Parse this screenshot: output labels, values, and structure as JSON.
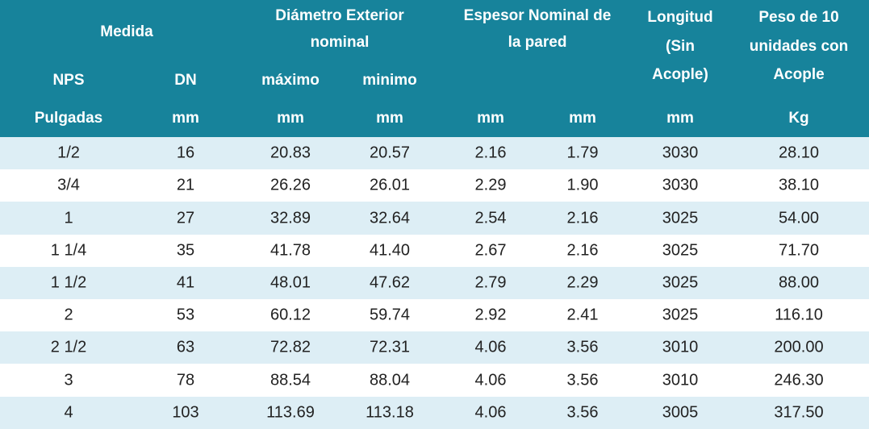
{
  "header": {
    "groups": [
      {
        "lines": [
          "Medida"
        ]
      },
      {
        "lines": [
          "Diámetro Exterior",
          "nominal"
        ]
      },
      {
        "lines": [
          "Espesor Nominal de",
          "la pared"
        ]
      },
      {
        "lines": [
          "Longitud",
          "(Sin",
          "Acople)"
        ]
      },
      {
        "lines": [
          "Peso de 10",
          "unidades con",
          "Acople"
        ]
      }
    ],
    "sub": [
      "NPS",
      "DN",
      "máximo",
      "minimo"
    ],
    "units": [
      "Pulgadas",
      "mm",
      "mm",
      "mm",
      "mm",
      "mm",
      "mm",
      "Kg"
    ]
  },
  "table": {
    "rows": [
      [
        "1/2",
        "16",
        "20.83",
        "20.57",
        "2.16",
        "1.79",
        "3030",
        "28.10"
      ],
      [
        "3/4",
        "21",
        "26.26",
        "26.01",
        "2.29",
        "1.90",
        "3030",
        "38.10"
      ],
      [
        "1",
        "27",
        "32.89",
        "32.64",
        "2.54",
        "2.16",
        "3025",
        "54.00"
      ],
      [
        "1 1/4",
        "35",
        "41.78",
        "41.40",
        "2.67",
        "2.16",
        "3025",
        "71.70"
      ],
      [
        "1 1/2",
        "41",
        "48.01",
        "47.62",
        "2.79",
        "2.29",
        "3025",
        "88.00"
      ],
      [
        "2",
        "53",
        "60.12",
        "59.74",
        "2.92",
        "2.41",
        "3025",
        "116.10"
      ],
      [
        "2 1/2",
        "63",
        "72.82",
        "72.31",
        "4.06",
        "3.56",
        "3010",
        "200.00"
      ],
      [
        "3",
        "78",
        "88.54",
        "88.04",
        "4.06",
        "3.56",
        "3010",
        "246.30"
      ],
      [
        "4",
        "103",
        "113.69",
        "113.18",
        "4.06",
        "3.56",
        "3005",
        "317.50"
      ]
    ]
  }
}
